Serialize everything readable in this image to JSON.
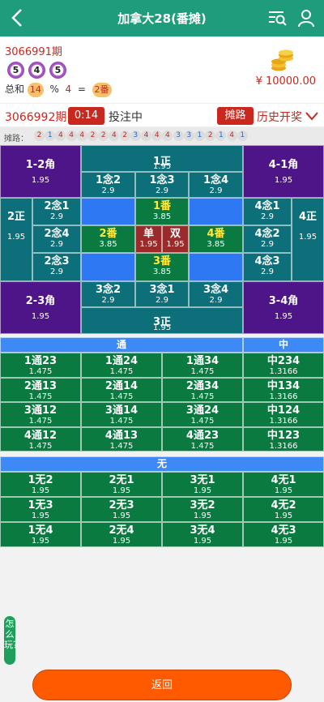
{
  "header": {
    "title": "加拿大28(番摊)"
  },
  "last_draw": {
    "period": "3066991期",
    "balls": [
      "5",
      "4",
      "5"
    ],
    "sum_label": "总和",
    "sum_value": "14",
    "mod_label": "%",
    "mod_value": "4",
    "eq_label": "=",
    "result": "2番"
  },
  "balance": "¥ 10000.00",
  "current": {
    "period": "3066992期",
    "countdown": "0:14",
    "status": "投注中",
    "trend_btn": "摊路",
    "history_btn": "历史开奖"
  },
  "trend": {
    "label": "摊路：",
    "values": [
      "2",
      "1",
      "4",
      "4",
      "4",
      "2",
      "2",
      "4",
      "2",
      "3",
      "4",
      "4",
      "4",
      "3",
      "3",
      "1",
      "2",
      "1",
      "4",
      "1"
    ]
  },
  "board": {
    "corner_1_2": {
      "name": "1-2角",
      "odd": "1.95"
    },
    "corner_4_1": {
      "name": "4-1角",
      "odd": "1.95"
    },
    "corner_2_3": {
      "name": "2-3角",
      "odd": "1.95"
    },
    "corner_3_4": {
      "name": "3-4角",
      "odd": "1.95"
    },
    "zheng1": {
      "name": "1正",
      "odd": "1.95"
    },
    "zheng2": {
      "name": "2正",
      "odd": "1.95"
    },
    "zheng3": {
      "name": "3正",
      "odd": "1.95"
    },
    "zheng4": {
      "name": "4正",
      "odd": "1.95"
    },
    "nian_1_2": {
      "name": "1念2",
      "odd": "2.9"
    },
    "nian_1_3": {
      "name": "1念3",
      "odd": "2.9"
    },
    "nian_1_4": {
      "name": "1念4",
      "odd": "2.9"
    },
    "nian_2_1": {
      "name": "2念1",
      "odd": "2.9"
    },
    "nian_2_4": {
      "name": "2念4",
      "odd": "2.9"
    },
    "nian_2_3": {
      "name": "2念3",
      "odd": "2.9"
    },
    "nian_4_1": {
      "name": "4念1",
      "odd": "2.9"
    },
    "nian_4_2": {
      "name": "4念2",
      "odd": "2.9"
    },
    "nian_4_3": {
      "name": "4念3",
      "odd": "2.9"
    },
    "nian_3_2": {
      "name": "3念2",
      "odd": "2.9"
    },
    "nian_3_1": {
      "name": "3念1",
      "odd": "2.9"
    },
    "nian_3_4": {
      "name": "3念4",
      "odd": "2.9"
    },
    "fan1": {
      "name": "1番",
      "odd": "3.85"
    },
    "fan2": {
      "name": "2番",
      "odd": "3.85"
    },
    "fan3": {
      "name": "3番",
      "odd": "3.85"
    },
    "fan4": {
      "name": "4番",
      "odd": "3.85"
    },
    "dan": {
      "name": "单",
      "odd": "1.95"
    },
    "shuang": {
      "name": "双",
      "odd": "1.95"
    }
  },
  "tong_section": {
    "header_left": "通",
    "header_right": "中",
    "rows": [
      [
        {
          "name": "1通23",
          "odd": "1.475"
        },
        {
          "name": "1通24",
          "odd": "1.475"
        },
        {
          "name": "1通34",
          "odd": "1.475"
        },
        {
          "name": "中234",
          "odd": "1.3166"
        }
      ],
      [
        {
          "name": "2通13",
          "odd": "1.475"
        },
        {
          "name": "2通14",
          "odd": "1.475"
        },
        {
          "name": "2通34",
          "odd": "1.475"
        },
        {
          "name": "中134",
          "odd": "1.3166"
        }
      ],
      [
        {
          "name": "3通12",
          "odd": "1.475"
        },
        {
          "name": "3通14",
          "odd": "1.475"
        },
        {
          "name": "3通24",
          "odd": "1.475"
        },
        {
          "name": "中124",
          "odd": "1.3166"
        }
      ],
      [
        {
          "name": "4通12",
          "odd": "1.475"
        },
        {
          "name": "4通13",
          "odd": "1.475"
        },
        {
          "name": "4通23",
          "odd": "1.475"
        },
        {
          "name": "中123",
          "odd": "1.3166"
        }
      ]
    ]
  },
  "wu_section": {
    "header": "无",
    "rows": [
      [
        {
          "name": "1无2",
          "odd": "1.95"
        },
        {
          "name": "2无1",
          "odd": "1.95"
        },
        {
          "name": "3无1",
          "odd": "1.95"
        },
        {
          "name": "4无1",
          "odd": "1.95"
        }
      ],
      [
        {
          "name": "1无3",
          "odd": "1.95"
        },
        {
          "name": "2无3",
          "odd": "1.95"
        },
        {
          "name": "3无2",
          "odd": "1.95"
        },
        {
          "name": "4无2",
          "odd": "1.95"
        }
      ],
      [
        {
          "name": "1无4",
          "odd": "1.95"
        },
        {
          "name": "2无4",
          "odd": "1.95"
        },
        {
          "name": "3无4",
          "odd": "1.95"
        },
        {
          "name": "4无3",
          "odd": "1.95"
        }
      ]
    ]
  },
  "howto": "怎么玩？",
  "return_btn": "返回",
  "colors": {
    "header": "#1e9c7c",
    "purple": "#4e1589",
    "teal": "#0d6f79",
    "blue": "#2f78f4",
    "green": "#0b7a40",
    "red": "#c8281e",
    "orange": "#ff5a00"
  }
}
